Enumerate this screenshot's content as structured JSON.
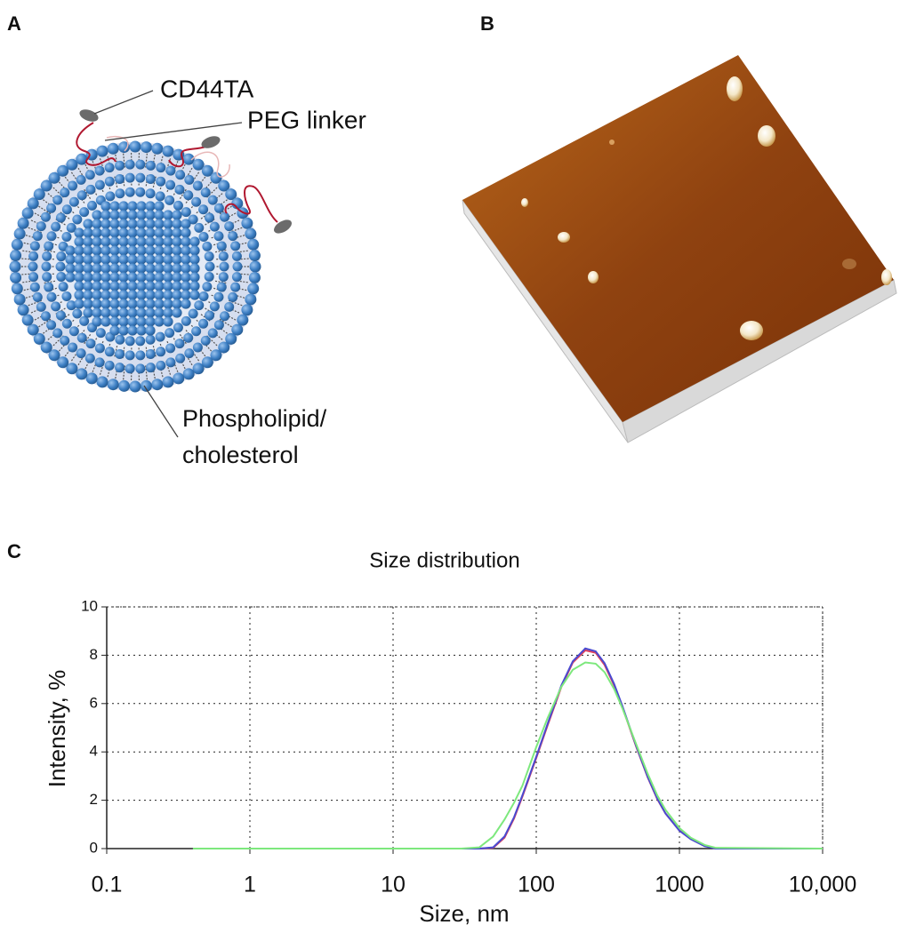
{
  "panel_labels": [
    "A",
    "B",
    "C"
  ],
  "diagram": {
    "cd44ta_label": "CD44TA",
    "peg_label": "PEG linker",
    "lipid_label": [
      "Phospholipid/",
      "cholesterol"
    ]
  },
  "chart_data": {
    "type": "line",
    "title": "Size distribution",
    "x_label": "Size, nm",
    "y_label": "Intensity, %",
    "log_x": true,
    "grid": true,
    "x": [
      0.4,
      30,
      40,
      50,
      60,
      70,
      80,
      100,
      120,
      150,
      180,
      220,
      260,
      300,
      350,
      400,
      500,
      600,
      700,
      800,
      1000,
      1200,
      1500,
      1800,
      10000
    ],
    "series": [
      {
        "color": "#e0405a",
        "values": [
          0,
          0,
          0,
          0.03,
          0.45,
          1.25,
          2.15,
          3.75,
          5.1,
          6.7,
          7.7,
          8.2,
          8.1,
          7.6,
          6.75,
          5.85,
          4.2,
          2.95,
          2.05,
          1.45,
          0.75,
          0.4,
          0.12,
          0,
          0
        ]
      },
      {
        "color": "#4a4ad0",
        "values": [
          0,
          0,
          0,
          0.05,
          0.5,
          1.3,
          2.2,
          3.8,
          5.16,
          6.76,
          7.75,
          8.28,
          8.16,
          7.67,
          6.81,
          5.89,
          4.23,
          2.97,
          2.07,
          1.45,
          0.74,
          0.39,
          0.1,
          0,
          0
        ]
      },
      {
        "color": "#7de87d",
        "values": [
          0,
          0,
          0.05,
          0.5,
          1.2,
          1.9,
          2.6,
          4.2,
          5.4,
          6.7,
          7.4,
          7.7,
          7.65,
          7.3,
          6.6,
          5.8,
          4.3,
          3.1,
          2.2,
          1.6,
          0.85,
          0.45,
          0.15,
          0.03,
          0
        ]
      }
    ],
    "xlim": [
      0.1,
      10000
    ],
    "xticks": [
      0.1,
      1,
      10,
      100,
      1000,
      {
        "value": 10000,
        "label": "10,000"
      }
    ],
    "ylim": [
      0,
      10
    ],
    "yticks": [
      0,
      2,
      4,
      6,
      8,
      10
    ]
  }
}
